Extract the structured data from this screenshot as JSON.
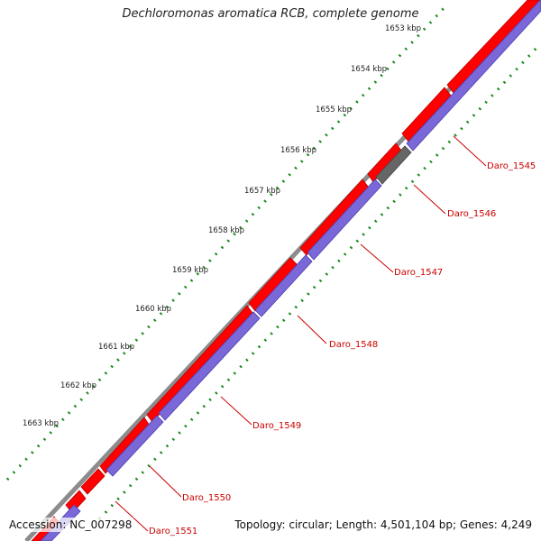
{
  "title": "Dechloromonas aromatica RCB, complete genome",
  "accession": "Accession: NC_007298",
  "summary": "Topology: circular; Length: 4,501,104 bp; Genes: 4,249",
  "ticks": [
    "1653 kbp",
    "1654 kbp",
    "1655 kbp",
    "1656 kbp",
    "1657 kbp",
    "1658 kbp",
    "1659 kbp",
    "1660 kbp",
    "1661 kbp",
    "1662 kbp",
    "1663 kbp"
  ],
  "gene_labels": [
    "Daro_1545",
    "Daro_1546",
    "Daro_1547",
    "Daro_1548",
    "Daro_1549",
    "Daro_1550",
    "Daro_1551"
  ],
  "colors": {
    "forward": "#ff0000",
    "reverse": "#7a68d8",
    "rna": "#666666",
    "backbone": "#8c8c8c",
    "tick": "#1b8a1b",
    "label": "#cc0000"
  }
}
